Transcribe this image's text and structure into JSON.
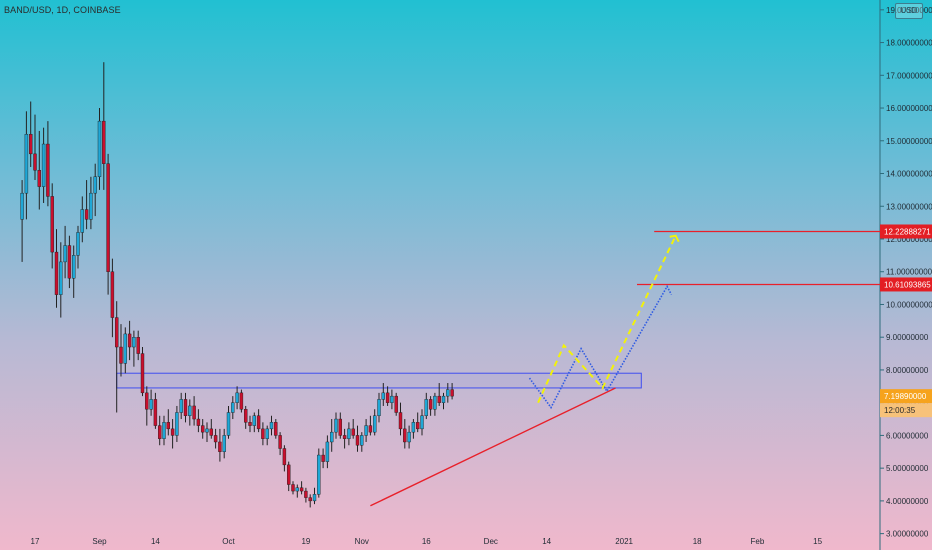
{
  "header": {
    "symbol_title": "BAND/USD, 1D, COINBASE",
    "currency": "USD"
  },
  "colors": {
    "bull": "#1fa7d6",
    "bear": "#c8102e",
    "wick": "#222222",
    "trendline": "#e8202a",
    "support_zone": "#3f4ef0",
    "projection_blue": "#2f5be3",
    "projection_yellow": "#f2f20a",
    "tag_red": "#e31e24",
    "tag_orange": "#f6a31d"
  },
  "chart_data": {
    "type": "candlestick",
    "title": "BAND/USD, 1D, COINBASE",
    "y_axis": {
      "range": [
        2.5,
        19.3
      ],
      "ticks": [
        3,
        4,
        5,
        6,
        7,
        8,
        9,
        10,
        11,
        12,
        13,
        14,
        15,
        16,
        17,
        18,
        19
      ],
      "tick_labels": [
        "3.00000000",
        "4.00000000",
        "5.00000000",
        "6.00000000",
        "7.00000000",
        "8.00000000",
        "9.00000000",
        "10.00000000",
        "11.00000000",
        "12.00000000",
        "13.00000000",
        "14.00000000",
        "15.00000000",
        "16.00000000",
        "17.00000000",
        "18.00000000",
        "19.00000000"
      ]
    },
    "x_axis": {
      "labels": [
        {
          "text": "17",
          "date": "2020-08-17"
        },
        {
          "text": "Sep",
          "date": "2020-09-01"
        },
        {
          "text": "14",
          "date": "2020-09-14"
        },
        {
          "text": "Oct",
          "date": "2020-10-01"
        },
        {
          "text": "19",
          "date": "2020-10-19"
        },
        {
          "text": "Nov",
          "date": "2020-11-01"
        },
        {
          "text": "16",
          "date": "2020-11-16"
        },
        {
          "text": "Dec",
          "date": "2020-12-01"
        },
        {
          "text": "14",
          "date": "2020-12-14"
        },
        {
          "text": "2021",
          "date": "2021-01-01"
        },
        {
          "text": "18",
          "date": "2021-01-18"
        },
        {
          "text": "Feb",
          "date": "2021-02-01"
        },
        {
          "text": "15",
          "date": "2021-02-15"
        }
      ]
    },
    "candles_start": "2020-08-14",
    "candles": [
      [
        12.6,
        13.8,
        11.3,
        13.4
      ],
      [
        13.4,
        15.9,
        12.6,
        15.2
      ],
      [
        15.2,
        16.2,
        14.2,
        14.6
      ],
      [
        14.6,
        15.8,
        13.8,
        14.1
      ],
      [
        14.1,
        15.3,
        12.9,
        13.6
      ],
      [
        13.6,
        15.4,
        13.1,
        14.9
      ],
      [
        14.9,
        15.6,
        13.0,
        13.3
      ],
      [
        13.3,
        13.7,
        11.1,
        11.6
      ],
      [
        11.6,
        12.3,
        9.9,
        10.3
      ],
      [
        10.3,
        11.9,
        9.6,
        11.3
      ],
      [
        11.3,
        12.4,
        10.8,
        11.8
      ],
      [
        11.8,
        12.1,
        10.5,
        10.8
      ],
      [
        10.8,
        11.8,
        10.2,
        11.5
      ],
      [
        11.5,
        12.4,
        11.1,
        12.2
      ],
      [
        12.2,
        13.3,
        11.9,
        12.9
      ],
      [
        12.9,
        13.8,
        12.3,
        12.6
      ],
      [
        12.6,
        13.9,
        12.3,
        13.4
      ],
      [
        13.4,
        14.3,
        12.7,
        13.9
      ],
      [
        13.9,
        16.0,
        13.5,
        15.6
      ],
      [
        15.6,
        17.4,
        13.5,
        14.3
      ],
      [
        14.3,
        14.6,
        10.3,
        11.0
      ],
      [
        11.0,
        11.4,
        9.0,
        9.6
      ],
      [
        9.6,
        10.1,
        6.7,
        8.7
      ],
      [
        8.7,
        9.4,
        7.8,
        8.2
      ],
      [
        8.2,
        9.3,
        7.9,
        9.1
      ],
      [
        9.1,
        9.5,
        8.3,
        8.7
      ],
      [
        8.7,
        9.2,
        8.1,
        9.0
      ],
      [
        9.0,
        9.2,
        8.3,
        8.5
      ],
      [
        8.5,
        8.7,
        7.2,
        7.3
      ],
      [
        7.3,
        7.5,
        6.3,
        6.8
      ],
      [
        6.8,
        7.4,
        6.6,
        7.1
      ],
      [
        7.1,
        7.3,
        6.2,
        6.3
      ],
      [
        6.3,
        6.6,
        5.7,
        5.9
      ],
      [
        5.9,
        6.6,
        5.7,
        6.4
      ],
      [
        6.4,
        6.8,
        6.0,
        6.2
      ],
      [
        6.2,
        6.5,
        5.6,
        6.0
      ],
      [
        6.0,
        6.9,
        5.8,
        6.7
      ],
      [
        6.7,
        7.3,
        6.5,
        7.1
      ],
      [
        7.1,
        7.3,
        6.4,
        6.6
      ],
      [
        6.6,
        7.1,
        6.3,
        6.9
      ],
      [
        6.9,
        7.2,
        6.3,
        6.5
      ],
      [
        6.5,
        6.8,
        6.1,
        6.3
      ],
      [
        6.3,
        6.5,
        5.9,
        6.1
      ],
      [
        6.1,
        6.4,
        5.8,
        6.2
      ],
      [
        6.2,
        6.5,
        5.9,
        6.0
      ],
      [
        6.0,
        6.2,
        5.6,
        5.8
      ],
      [
        5.8,
        6.2,
        5.2,
        5.5
      ],
      [
        5.5,
        6.2,
        5.3,
        6.0
      ],
      [
        6.0,
        6.9,
        5.9,
        6.7
      ],
      [
        6.7,
        7.2,
        6.5,
        7.0
      ],
      [
        7.0,
        7.5,
        6.8,
        7.3
      ],
      [
        7.3,
        7.4,
        6.7,
        6.8
      ],
      [
        6.8,
        6.9,
        6.2,
        6.4
      ],
      [
        6.4,
        6.6,
        6.1,
        6.3
      ],
      [
        6.3,
        6.7,
        6.1,
        6.6
      ],
      [
        6.6,
        6.8,
        6.1,
        6.2
      ],
      [
        6.2,
        6.4,
        5.7,
        5.9
      ],
      [
        5.9,
        6.3,
        5.7,
        6.2
      ],
      [
        6.2,
        6.6,
        6.0,
        6.4
      ],
      [
        6.4,
        6.5,
        5.9,
        6.0
      ],
      [
        6.0,
        6.1,
        5.4,
        5.6
      ],
      [
        5.6,
        5.7,
        4.9,
        5.1
      ],
      [
        5.1,
        5.2,
        4.3,
        4.5
      ],
      [
        4.5,
        4.6,
        4.2,
        4.3
      ],
      [
        4.3,
        4.5,
        4.1,
        4.4
      ],
      [
        4.4,
        4.6,
        4.2,
        4.3
      ],
      [
        4.3,
        4.4,
        3.95,
        4.1
      ],
      [
        4.1,
        4.2,
        3.8,
        4.0
      ],
      [
        4.0,
        4.4,
        3.9,
        4.2
      ],
      [
        4.2,
        5.6,
        4.1,
        5.4
      ],
      [
        5.4,
        5.6,
        5.0,
        5.2
      ],
      [
        5.2,
        6.0,
        5.0,
        5.8
      ],
      [
        5.8,
        6.5,
        5.5,
        6.1
      ],
      [
        6.1,
        6.7,
        5.9,
        6.5
      ],
      [
        6.5,
        6.7,
        5.9,
        6.0
      ],
      [
        6.0,
        6.2,
        5.6,
        5.9
      ],
      [
        5.9,
        6.4,
        5.7,
        6.2
      ],
      [
        6.2,
        6.5,
        5.9,
        6.0
      ],
      [
        6.0,
        6.3,
        5.5,
        5.7
      ],
      [
        5.7,
        6.1,
        5.5,
        6.0
      ],
      [
        6.0,
        6.5,
        5.8,
        6.3
      ],
      [
        6.3,
        6.6,
        6.0,
        6.1
      ],
      [
        6.1,
        6.8,
        6.0,
        6.6
      ],
      [
        6.6,
        7.3,
        6.4,
        7.1
      ],
      [
        7.1,
        7.6,
        6.9,
        7.3
      ],
      [
        7.3,
        7.5,
        6.9,
        7.0
      ],
      [
        7.0,
        7.4,
        6.8,
        7.2
      ],
      [
        7.2,
        7.3,
        6.6,
        6.7
      ],
      [
        6.7,
        7.0,
        6.0,
        6.2
      ],
      [
        6.2,
        6.5,
        5.6,
        5.8
      ],
      [
        5.8,
        6.3,
        5.6,
        6.1
      ],
      [
        6.1,
        6.5,
        5.9,
        6.4
      ],
      [
        6.4,
        6.7,
        6.1,
        6.2
      ],
      [
        6.2,
        6.8,
        6.0,
        6.6
      ],
      [
        6.6,
        7.3,
        6.5,
        7.1
      ],
      [
        7.1,
        7.2,
        6.6,
        6.8
      ],
      [
        6.8,
        7.3,
        6.6,
        7.2
      ],
      [
        7.2,
        7.6,
        6.9,
        7.0
      ],
      [
        7.0,
        7.3,
        6.8,
        7.2
      ],
      [
        7.2,
        7.6,
        7.0,
        7.4
      ],
      [
        7.4,
        7.6,
        7.1,
        7.2
      ]
    ],
    "support_zone": {
      "start": "2020-09-05",
      "end": "2021-01-05",
      "low": 7.45,
      "high": 7.9
    },
    "trendline": {
      "start": {
        "date": "2020-11-03",
        "value": 3.85
      },
      "end": {
        "date": "2020-12-30",
        "value": 7.45
      }
    },
    "resistance_levels": [
      {
        "value": 12.22888271,
        "label": "12.22888271",
        "start": "2021-01-08"
      },
      {
        "value": 10.61093865,
        "label": "10.61093865",
        "start": "2021-01-04"
      }
    ],
    "projection_blue": [
      {
        "date": "2020-12-10",
        "value": 7.75
      },
      {
        "date": "2020-12-15",
        "value": 6.85
      },
      {
        "date": "2020-12-22",
        "value": 8.65
      },
      {
        "date": "2020-12-28",
        "value": 7.35
      },
      {
        "date": "2021-01-11",
        "value": 10.55
      },
      {
        "date": "2021-01-12",
        "value": 10.3
      }
    ],
    "projection_yellow": [
      {
        "date": "2020-12-12",
        "value": 7.0
      },
      {
        "date": "2020-12-18",
        "value": 8.75
      },
      {
        "date": "2020-12-27",
        "value": 7.45
      },
      {
        "date": "2021-01-13",
        "value": 12.1
      }
    ],
    "last_price": {
      "value": 7.1989,
      "label": "7.19890000",
      "countdown": "12:00:35"
    },
    "grid": false
  }
}
